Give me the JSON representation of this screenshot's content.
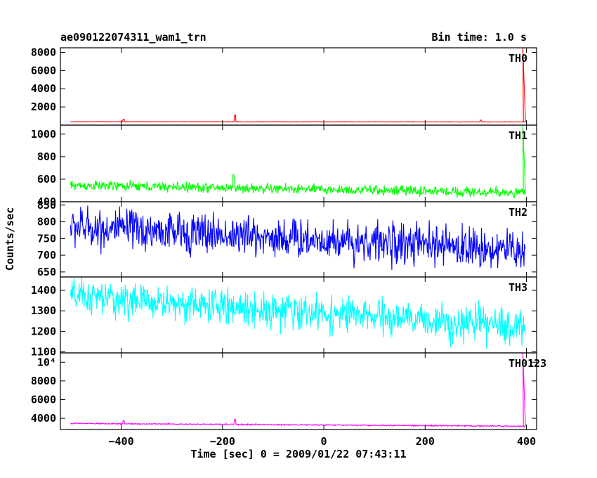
{
  "header": {
    "title": "ae090122074311_wam1_trn",
    "bin_time": "Bin time: 1.0 s"
  },
  "axes": {
    "xlabel": "Time [sec] 0 = 2009/01/22 07:43:11",
    "ylabel": "Counts/sec"
  },
  "chart_data": [
    {
      "type": "line",
      "name": "TH0",
      "color": "#ff0000",
      "xlim": [
        -520,
        420
      ],
      "ylim": [
        0,
        8500
      ],
      "x_ticks": [
        -400,
        -200,
        0,
        200,
        400
      ],
      "y_ticks": [
        2000,
        4000,
        6000,
        8000
      ],
      "y_tick_labels": [
        "2000",
        "4000",
        "6000",
        "8000"
      ],
      "baseline": {
        "start": 380,
        "end": 350,
        "noise": 15
      },
      "bumps": [
        {
          "x": -395,
          "y": 650
        },
        {
          "x": -175,
          "y": 1100
        },
        {
          "x": 310,
          "y": 550
        }
      ],
      "spike": {
        "x": 393,
        "peak": 8500
      }
    },
    {
      "type": "line",
      "name": "TH1",
      "color": "#00ff00",
      "xlim": [
        -520,
        420
      ],
      "ylim": [
        400,
        1080
      ],
      "x_ticks": [
        -400,
        -200,
        0,
        200,
        400
      ],
      "y_ticks": [
        400,
        600,
        800,
        1000
      ],
      "y_tick_labels": [
        "400",
        "600",
        "800",
        "1000"
      ],
      "baseline": {
        "start": 545,
        "end": 480,
        "noise": 22
      },
      "bumps": [
        {
          "x": -178,
          "y": 640
        }
      ],
      "spike": {
        "x": 393,
        "peak": 1080
      }
    },
    {
      "type": "line",
      "name": "TH2",
      "color": "#0000ff",
      "xlim": [
        -520,
        420
      ],
      "ylim": [
        635,
        860
      ],
      "x_ticks": [
        -400,
        -200,
        0,
        200,
        400
      ],
      "y_ticks": [
        650,
        700,
        750,
        800,
        850
      ],
      "y_tick_labels": [
        "650",
        "700",
        "750",
        "800",
        "850"
      ],
      "baseline": {
        "start": 785,
        "end": 715,
        "noise": 30
      },
      "bumps": [],
      "spike": null
    },
    {
      "type": "line",
      "name": "TH3",
      "color": "#00ffff",
      "xlim": [
        -520,
        420
      ],
      "ylim": [
        1095,
        1465
      ],
      "x_ticks": [
        -400,
        -200,
        0,
        200,
        400
      ],
      "y_ticks": [
        1100,
        1200,
        1300,
        1400
      ],
      "y_tick_labels": [
        "1100",
        "1200",
        "1300",
        "1400"
      ],
      "baseline": {
        "start": 1370,
        "end": 1220,
        "noise": 42
      },
      "bumps": [],
      "spike": null
    },
    {
      "type": "line",
      "name": "TH0123",
      "color": "#ff00ff",
      "xlim": [
        -520,
        420
      ],
      "ylim": [
        2800,
        11000
      ],
      "x_ticks": [
        -400,
        -200,
        0,
        200,
        400
      ],
      "y_ticks": [
        4000,
        6000,
        8000,
        10000
      ],
      "y_tick_labels": [
        "4000",
        "6000",
        "8000",
        "10⁴"
      ],
      "x_tick_labels": [
        "−400",
        "−200",
        "0",
        "200",
        "400"
      ],
      "baseline": {
        "start": 3450,
        "end": 3150,
        "noise": 35
      },
      "bumps": [
        {
          "x": -395,
          "y": 3750
        },
        {
          "x": -175,
          "y": 3900
        }
      ],
      "spike": {
        "x": 393,
        "peak": 11000
      }
    }
  ]
}
